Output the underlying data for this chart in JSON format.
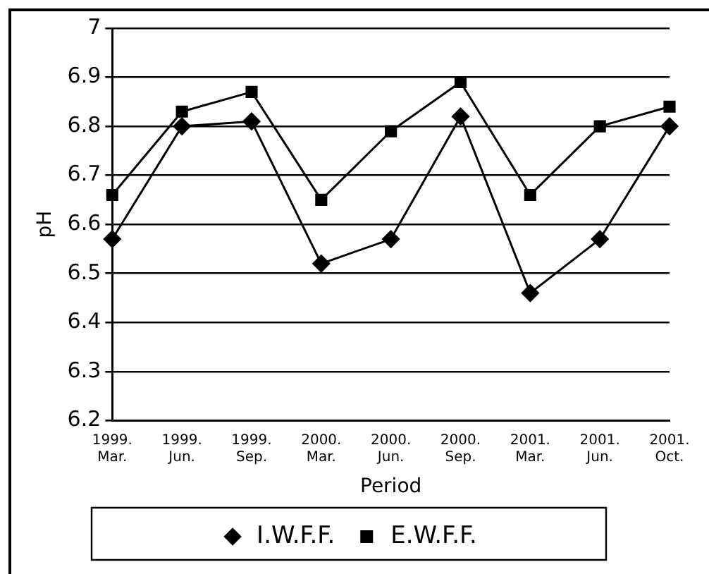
{
  "chart_data": {
    "type": "line",
    "xlabel": "Period",
    "ylabel": "pH",
    "categories": [
      "1999.\nMar.",
      "1999.\nJun.",
      "1999.\nSep.",
      "2000.\nMar.",
      "2000.\nJun.",
      "2000.\nSep.",
      "2001.\nMar.",
      "2001.\nJun.",
      "2001.\nOct."
    ],
    "series": [
      {
        "name": "I.W.F.F.",
        "color": "#000000",
        "marker": "diamond",
        "values": [
          6.57,
          6.8,
          6.81,
          6.52,
          6.57,
          6.82,
          6.46,
          6.57,
          6.8
        ]
      },
      {
        "name": "E.W.F.F.",
        "color": "#000000",
        "marker": "square",
        "values": [
          6.66,
          6.83,
          6.87,
          6.65,
          6.79,
          6.89,
          6.66,
          6.8,
          6.84
        ]
      }
    ],
    "ylim": [
      6.2,
      7
    ],
    "yticks": [
      6.2,
      6.3,
      6.4,
      6.5,
      6.6,
      6.7,
      6.8,
      6.9,
      7
    ],
    "grid": "y",
    "legend": "bottom",
    "line_style": "solid"
  }
}
